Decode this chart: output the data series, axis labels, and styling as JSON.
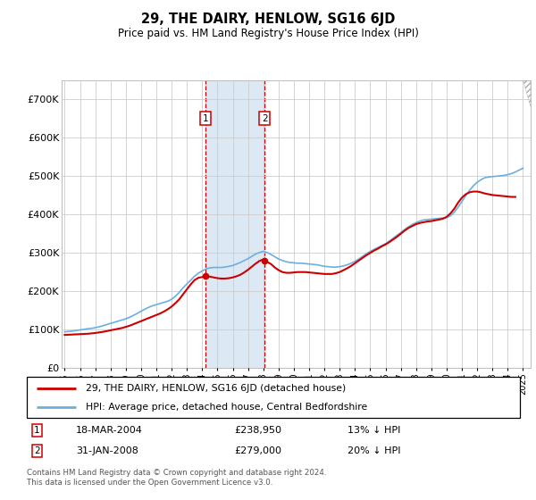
{
  "title": "29, THE DAIRY, HENLOW, SG16 6JD",
  "subtitle": "Price paid vs. HM Land Registry's House Price Index (HPI)",
  "yticks": [
    0,
    100000,
    200000,
    300000,
    400000,
    500000,
    600000,
    700000
  ],
  "ytick_labels": [
    "£0",
    "£100K",
    "£200K",
    "£300K",
    "£400K",
    "£500K",
    "£600K",
    "£700K"
  ],
  "xlim_left": 1994.8,
  "xlim_right": 2025.5,
  "ylim_bottom": 0,
  "ylim_top": 750000,
  "sale1_date": 2004.21,
  "sale1_price": 238950,
  "sale1_label": "1",
  "sale1_text": "18-MAR-2004",
  "sale1_amount": "£238,950",
  "sale1_hpi": "13% ↓ HPI",
  "sale2_date": 2008.08,
  "sale2_price": 279000,
  "sale2_label": "2",
  "sale2_text": "31-JAN-2008",
  "sale2_amount": "£279,000",
  "sale2_hpi": "20% ↓ HPI",
  "hpi_color": "#6ab0de",
  "price_color": "#cc0000",
  "shade_color": "#dce9f5",
  "marker_box_color": "#cc0000",
  "footnote": "Contains HM Land Registry data © Crown copyright and database right 2024.\nThis data is licensed under the Open Government Licence v3.0.",
  "legend_line1": "29, THE DAIRY, HENLOW, SG16 6JD (detached house)",
  "legend_line2": "HPI: Average price, detached house, Central Bedfordshire",
  "hpi_years": [
    1995,
    1995.25,
    1995.5,
    1995.75,
    1996,
    1996.25,
    1996.5,
    1996.75,
    1997,
    1997.25,
    1997.5,
    1997.75,
    1998,
    1998.25,
    1998.5,
    1998.75,
    1999,
    1999.25,
    1999.5,
    1999.75,
    2000,
    2000.25,
    2000.5,
    2000.75,
    2001,
    2001.25,
    2001.5,
    2001.75,
    2002,
    2002.25,
    2002.5,
    2002.75,
    2003,
    2003.25,
    2003.5,
    2003.75,
    2004,
    2004.25,
    2004.5,
    2004.75,
    2005,
    2005.25,
    2005.5,
    2005.75,
    2006,
    2006.25,
    2006.5,
    2006.75,
    2007,
    2007.25,
    2007.5,
    2007.75,
    2008,
    2008.25,
    2008.5,
    2008.75,
    2009,
    2009.25,
    2009.5,
    2009.75,
    2010,
    2010.25,
    2010.5,
    2010.75,
    2011,
    2011.25,
    2011.5,
    2011.75,
    2012,
    2012.25,
    2012.5,
    2012.75,
    2013,
    2013.25,
    2013.5,
    2013.75,
    2014,
    2014.25,
    2014.5,
    2014.75,
    2015,
    2015.25,
    2015.5,
    2015.75,
    2016,
    2016.25,
    2016.5,
    2016.75,
    2017,
    2017.25,
    2017.5,
    2017.75,
    2018,
    2018.25,
    2018.5,
    2018.75,
    2019,
    2019.25,
    2019.5,
    2019.75,
    2020,
    2020.25,
    2020.5,
    2020.75,
    2021,
    2021.25,
    2021.5,
    2021.75,
    2022,
    2022.25,
    2022.5,
    2022.75,
    2023,
    2023.25,
    2023.5,
    2023.75,
    2024,
    2024.25,
    2024.5,
    2024.75,
    2025
  ],
  "hpi_values": [
    93000,
    94000,
    95000,
    96500,
    98000,
    99500,
    101000,
    102000,
    104000,
    106000,
    109000,
    112000,
    115000,
    118000,
    121000,
    124000,
    127000,
    131000,
    136000,
    141000,
    147000,
    152000,
    157000,
    161000,
    164000,
    167000,
    170000,
    173000,
    178000,
    186000,
    196000,
    208000,
    218000,
    228000,
    238000,
    246000,
    252000,
    257000,
    260000,
    261000,
    261000,
    261000,
    262000,
    264000,
    266000,
    270000,
    274000,
    279000,
    284000,
    290000,
    296000,
    300000,
    303000,
    300000,
    295000,
    289000,
    283000,
    279000,
    276000,
    274000,
    273000,
    272000,
    272000,
    271000,
    270000,
    269000,
    268000,
    266000,
    264000,
    263000,
    262000,
    262000,
    263000,
    265000,
    268000,
    272000,
    277000,
    283000,
    290000,
    297000,
    303000,
    308000,
    313000,
    318000,
    323000,
    330000,
    337000,
    345000,
    352000,
    360000,
    367000,
    373000,
    378000,
    382000,
    385000,
    386000,
    387000,
    388000,
    389000,
    390000,
    391000,
    396000,
    405000,
    418000,
    433000,
    448000,
    462000,
    474000,
    483000,
    490000,
    495000,
    497000,
    498000,
    499000,
    500000,
    501000,
    503000,
    506000,
    510000,
    515000,
    520000
  ],
  "price_years": [
    1995,
    1995.25,
    1995.5,
    1995.75,
    1996,
    1996.25,
    1996.5,
    1996.75,
    1997,
    1997.25,
    1997.5,
    1997.75,
    1998,
    1998.25,
    1998.5,
    1998.75,
    1999,
    1999.25,
    1999.5,
    1999.75,
    2000,
    2000.25,
    2000.5,
    2000.75,
    2001,
    2001.25,
    2001.5,
    2001.75,
    2002,
    2002.25,
    2002.5,
    2002.75,
    2003,
    2003.25,
    2003.5,
    2003.75,
    2004,
    2004.21,
    2004.5,
    2004.75,
    2005,
    2005.25,
    2005.5,
    2005.75,
    2006,
    2006.25,
    2006.5,
    2006.75,
    2007,
    2007.25,
    2007.5,
    2007.75,
    2008,
    2008.08,
    2008.5,
    2008.75,
    2009,
    2009.25,
    2009.5,
    2009.75,
    2010,
    2010.25,
    2010.5,
    2010.75,
    2011,
    2011.25,
    2011.5,
    2011.75,
    2012,
    2012.25,
    2012.5,
    2012.75,
    2013,
    2013.25,
    2013.5,
    2013.75,
    2014,
    2014.25,
    2014.5,
    2014.75,
    2015,
    2015.25,
    2015.5,
    2015.75,
    2016,
    2016.25,
    2016.5,
    2016.75,
    2017,
    2017.25,
    2017.5,
    2017.75,
    2018,
    2018.25,
    2018.5,
    2018.75,
    2019,
    2019.25,
    2019.5,
    2019.75,
    2020,
    2020.25,
    2020.5,
    2020.75,
    2021,
    2021.25,
    2021.5,
    2021.75,
    2022,
    2022.25,
    2022.5,
    2022.75,
    2023,
    2023.25,
    2023.5,
    2023.75,
    2024,
    2024.25,
    2024.5
  ],
  "price_values": [
    85000,
    85500,
    86000,
    86500,
    87000,
    87500,
    88000,
    89000,
    90000,
    91500,
    93000,
    95000,
    97000,
    99000,
    101000,
    103000,
    106000,
    109000,
    113000,
    117000,
    121000,
    125000,
    129000,
    133000,
    137000,
    141000,
    146000,
    152000,
    159000,
    168000,
    178000,
    191000,
    204000,
    217000,
    228000,
    234000,
    236000,
    238950,
    237000,
    235000,
    233000,
    232000,
    232000,
    233000,
    235000,
    238000,
    242000,
    248000,
    255000,
    263000,
    271000,
    278000,
    282000,
    279000,
    270000,
    261000,
    254000,
    249000,
    247000,
    247000,
    248000,
    249000,
    249000,
    249000,
    248000,
    247000,
    246000,
    245000,
    244000,
    244000,
    244000,
    246000,
    249000,
    254000,
    259000,
    265000,
    272000,
    279000,
    286000,
    293000,
    299000,
    305000,
    310000,
    316000,
    321000,
    327000,
    334000,
    341000,
    349000,
    357000,
    364000,
    369000,
    374000,
    377000,
    379000,
    381000,
    382000,
    384000,
    386000,
    388000,
    393000,
    402000,
    414000,
    430000,
    443000,
    452000,
    457000,
    459000,
    459000,
    457000,
    454000,
    452000,
    450000,
    449000,
    448000,
    447000,
    446000,
    445000,
    445000
  ],
  "xtick_years": [
    1995,
    1996,
    1997,
    1998,
    1999,
    2000,
    2001,
    2002,
    2003,
    2004,
    2005,
    2006,
    2007,
    2008,
    2009,
    2010,
    2011,
    2012,
    2013,
    2014,
    2015,
    2016,
    2017,
    2018,
    2019,
    2020,
    2021,
    2022,
    2023,
    2024,
    2025
  ]
}
